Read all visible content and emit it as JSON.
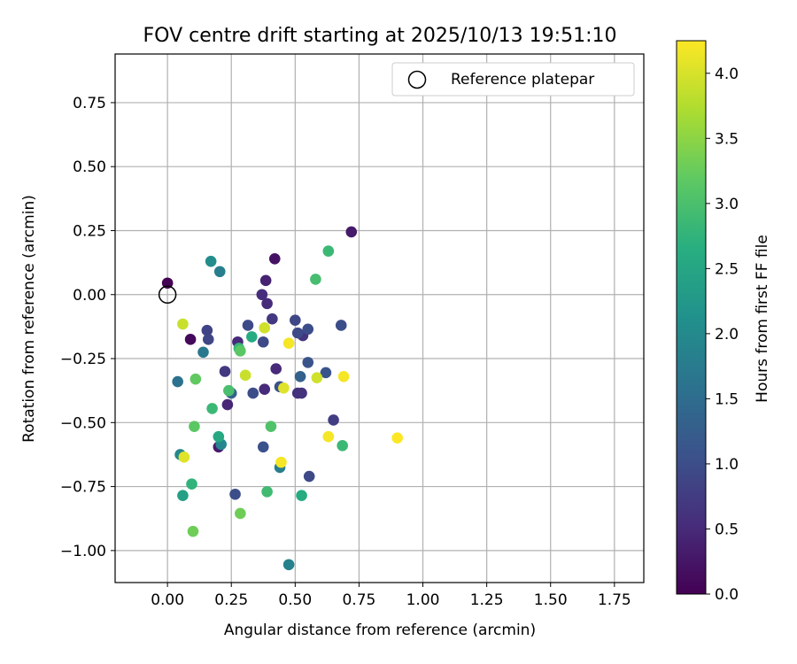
{
  "chart_data": {
    "type": "scatter",
    "title": "FOV centre drift starting at 2025/10/13 19:51:10",
    "xlabel": "Angular distance from reference (arcmin)",
    "ylabel": "Rotation from reference (arcmin)",
    "xlim": [
      -0.205,
      1.865
    ],
    "ylim": [
      -1.125,
      0.94
    ],
    "xticks": [
      0.0,
      0.25,
      0.5,
      0.75,
      1.0,
      1.25,
      1.5,
      1.75
    ],
    "xtick_labels": [
      "0.00",
      "0.25",
      "0.50",
      "0.75",
      "1.00",
      "1.25",
      "1.50",
      "1.75"
    ],
    "yticks": [
      -1.0,
      -0.75,
      -0.5,
      -0.25,
      0.0,
      0.25,
      0.5,
      0.75
    ],
    "ytick_labels": [
      "−1.00",
      "−0.75",
      "−0.50",
      "−0.25",
      "0.00",
      "0.25",
      "0.50",
      "0.75"
    ],
    "grid": true,
    "legend": {
      "position": "top-right",
      "entries": [
        "Reference platepar"
      ]
    },
    "reference_point": {
      "x": 0.0,
      "y": 0.0,
      "label": "Reference platepar"
    },
    "colorbar": {
      "label": "Hours from first FF file",
      "colormap": "viridis",
      "range": [
        0.0,
        4.25
      ],
      "ticks": [
        0.0,
        0.5,
        1.0,
        1.5,
        2.0,
        2.5,
        3.0,
        3.5,
        4.0
      ],
      "tick_labels": [
        "0.0",
        "0.5",
        "1.0",
        "1.5",
        "2.0",
        "2.5",
        "3.0",
        "3.5",
        "4.0"
      ]
    },
    "points": [
      {
        "x": 0.0,
        "y": 0.045,
        "c": 0.0
      },
      {
        "x": 0.09,
        "y": -0.175,
        "c": 0.1
      },
      {
        "x": 0.42,
        "y": 0.14,
        "c": 0.2
      },
      {
        "x": 0.72,
        "y": 0.245,
        "c": 0.3
      },
      {
        "x": 0.385,
        "y": 0.055,
        "c": 0.4
      },
      {
        "x": 0.39,
        "y": -0.035,
        "c": 0.5
      },
      {
        "x": 0.37,
        "y": 0.0,
        "c": 0.55
      },
      {
        "x": 0.275,
        "y": -0.185,
        "c": 0.5
      },
      {
        "x": 0.2,
        "y": -0.595,
        "c": 0.3
      },
      {
        "x": 0.235,
        "y": -0.43,
        "c": 0.45
      },
      {
        "x": 0.38,
        "y": -0.37,
        "c": 0.5
      },
      {
        "x": 0.425,
        "y": -0.29,
        "c": 0.5
      },
      {
        "x": 0.51,
        "y": -0.385,
        "c": 0.6
      },
      {
        "x": 0.525,
        "y": -0.385,
        "c": 0.6
      },
      {
        "x": 0.41,
        "y": -0.095,
        "c": 0.7
      },
      {
        "x": 0.53,
        "y": -0.16,
        "c": 0.65
      },
      {
        "x": 0.65,
        "y": -0.49,
        "c": 0.75
      },
      {
        "x": 0.225,
        "y": -0.3,
        "c": 0.7
      },
      {
        "x": 0.155,
        "y": -0.14,
        "c": 0.85
      },
      {
        "x": 0.16,
        "y": -0.175,
        "c": 0.9
      },
      {
        "x": 0.315,
        "y": -0.12,
        "c": 0.95
      },
      {
        "x": 0.375,
        "y": -0.185,
        "c": 0.95
      },
      {
        "x": 0.5,
        "y": -0.1,
        "c": 0.9
      },
      {
        "x": 0.51,
        "y": -0.15,
        "c": 0.95
      },
      {
        "x": 0.55,
        "y": -0.135,
        "c": 1.0
      },
      {
        "x": 0.68,
        "y": -0.12,
        "c": 1.0
      },
      {
        "x": 0.55,
        "y": -0.265,
        "c": 1.1
      },
      {
        "x": 0.62,
        "y": -0.305,
        "c": 1.1
      },
      {
        "x": 0.335,
        "y": -0.385,
        "c": 1.0
      },
      {
        "x": 0.44,
        "y": -0.36,
        "c": 1.05
      },
      {
        "x": 0.375,
        "y": -0.595,
        "c": 1.05
      },
      {
        "x": 0.555,
        "y": -0.71,
        "c": 0.95
      },
      {
        "x": 0.265,
        "y": -0.78,
        "c": 1.0
      },
      {
        "x": 0.52,
        "y": -0.32,
        "c": 1.3
      },
      {
        "x": 0.25,
        "y": -0.385,
        "c": 1.35
      },
      {
        "x": 0.04,
        "y": -0.34,
        "c": 1.6
      },
      {
        "x": 0.14,
        "y": -0.225,
        "c": 1.7
      },
      {
        "x": 0.205,
        "y": 0.09,
        "c": 1.8
      },
      {
        "x": 0.17,
        "y": 0.13,
        "c": 2.05
      },
      {
        "x": 0.21,
        "y": -0.585,
        "c": 1.95
      },
      {
        "x": 0.05,
        "y": -0.625,
        "c": 1.95
      },
      {
        "x": 0.475,
        "y": -1.055,
        "c": 1.85
      },
      {
        "x": 0.44,
        "y": -0.675,
        "c": 1.8
      },
      {
        "x": 0.06,
        "y": -0.785,
        "c": 2.4
      },
      {
        "x": 0.2,
        "y": -0.555,
        "c": 2.55
      },
      {
        "x": 0.33,
        "y": -0.165,
        "c": 2.6
      },
      {
        "x": 0.525,
        "y": -0.785,
        "c": 2.6
      },
      {
        "x": 0.28,
        "y": -0.21,
        "c": 2.8
      },
      {
        "x": 0.095,
        "y": -0.74,
        "c": 2.75
      },
      {
        "x": 0.175,
        "y": -0.445,
        "c": 2.85
      },
      {
        "x": 0.63,
        "y": 0.17,
        "c": 2.85
      },
      {
        "x": 0.58,
        "y": 0.06,
        "c": 2.95
      },
      {
        "x": 0.39,
        "y": -0.77,
        "c": 2.9
      },
      {
        "x": 0.685,
        "y": -0.59,
        "c": 2.85
      },
      {
        "x": 0.405,
        "y": -0.515,
        "c": 3.05
      },
      {
        "x": 0.24,
        "y": -0.375,
        "c": 3.0
      },
      {
        "x": 0.285,
        "y": -0.22,
        "c": 3.15
      },
      {
        "x": 0.11,
        "y": -0.33,
        "c": 3.2
      },
      {
        "x": 0.105,
        "y": -0.515,
        "c": 3.15
      },
      {
        "x": 0.1,
        "y": -0.925,
        "c": 3.3
      },
      {
        "x": 0.285,
        "y": -0.855,
        "c": 3.3
      },
      {
        "x": 0.06,
        "y": -0.115,
        "c": 3.9
      },
      {
        "x": 0.305,
        "y": -0.315,
        "c": 3.9
      },
      {
        "x": 0.585,
        "y": -0.325,
        "c": 3.95
      },
      {
        "x": 0.38,
        "y": -0.13,
        "c": 3.95
      },
      {
        "x": 0.065,
        "y": -0.635,
        "c": 4.05
      },
      {
        "x": 0.455,
        "y": -0.365,
        "c": 4.05
      },
      {
        "x": 0.475,
        "y": -0.19,
        "c": 4.2
      },
      {
        "x": 0.445,
        "y": -0.655,
        "c": 4.2
      },
      {
        "x": 0.63,
        "y": -0.555,
        "c": 4.2
      },
      {
        "x": 0.69,
        "y": -0.32,
        "c": 4.2
      },
      {
        "x": 0.9,
        "y": -0.56,
        "c": 4.25
      }
    ]
  }
}
